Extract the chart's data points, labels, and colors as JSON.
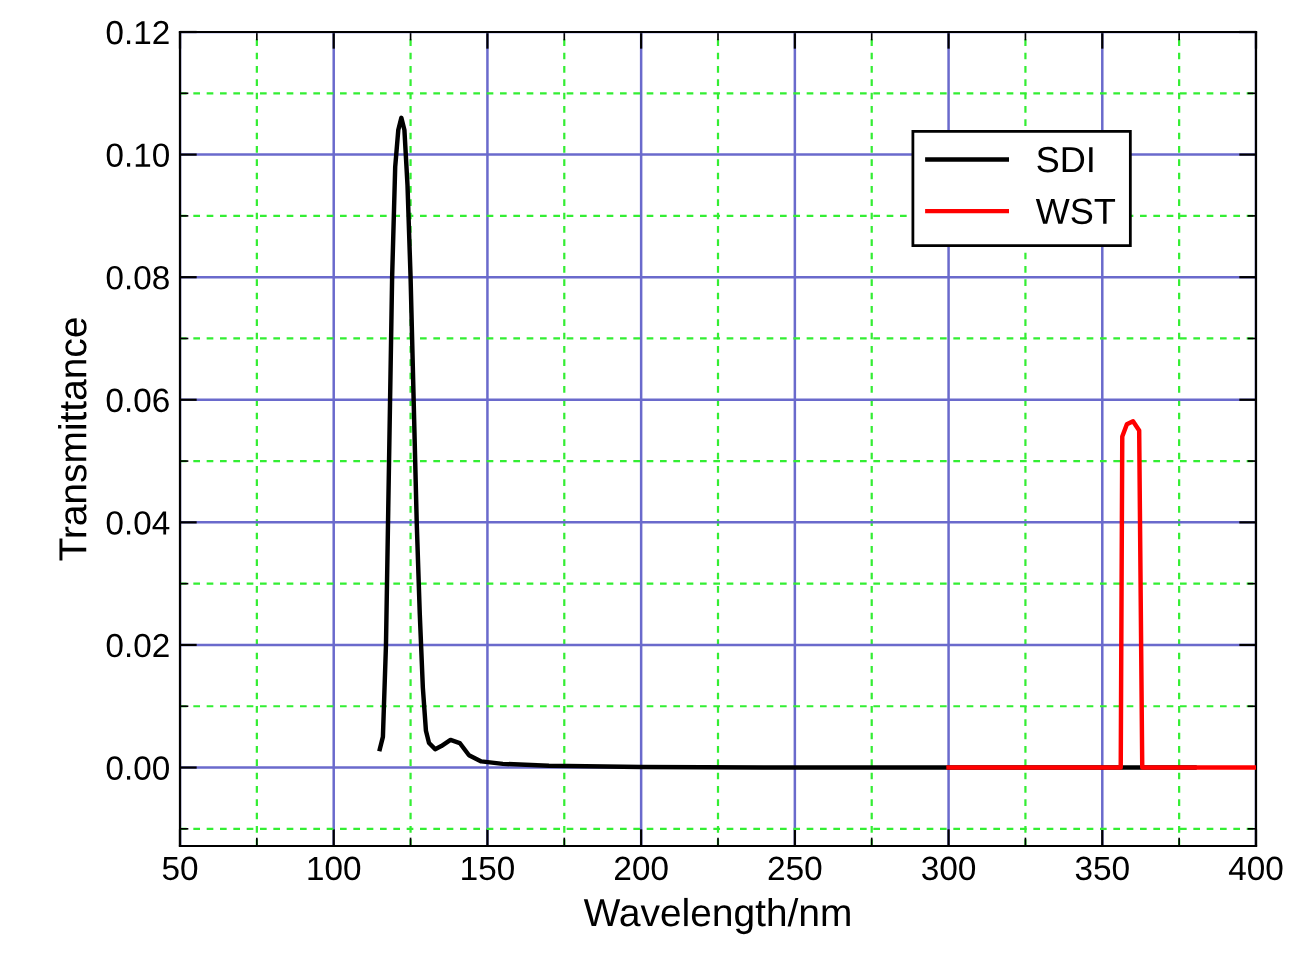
{
  "chart_data": {
    "type": "line",
    "xlabel": "Wavelength/nm",
    "ylabel": "Transmittance",
    "xlim": [
      50,
      400
    ],
    "xticks": [
      50,
      {
        "value": 75,
        "label": null
      },
      100,
      {
        "value": 125,
        "label": null
      },
      150,
      {
        "value": 175,
        "label": null
      },
      200,
      {
        "value": 225,
        "label": null
      },
      250,
      {
        "value": 275,
        "label": null
      },
      300,
      {
        "value": 325,
        "label": null
      },
      350,
      {
        "value": 375,
        "label": null
      },
      400
    ],
    "ylim": [
      -0.0128,
      0.12
    ],
    "yticks": [
      {
        "value": -0.01,
        "label": null
      },
      {
        "value": 0,
        "label": "0.00"
      },
      {
        "value": 0.01,
        "label": null
      },
      {
        "value": 0.03,
        "label": null
      },
      {
        "value": 0.05,
        "label": null
      },
      {
        "value": 0.07,
        "label": null
      },
      {
        "value": 0.09,
        "label": null
      },
      {
        "value": 0.11,
        "label": null
      },
      {
        "value": 0.02,
        "label": "0.02"
      },
      {
        "value": 0.04,
        "label": "0.04"
      },
      {
        "value": 0.06,
        "label": "0.06"
      },
      {
        "value": 0.08,
        "label": "0.08"
      },
      {
        "value": 0.1,
        "label": "0.10"
      },
      {
        "value": 0.12,
        "label": "0.12"
      }
    ],
    "grid": true,
    "legend": "top right",
    "line_style": "solid",
    "series": [
      {
        "name": "SDI",
        "color": "#000000",
        "x": [
          115,
          116,
          117,
          118,
          119,
          120,
          121,
          122,
          123,
          124,
          125,
          126,
          127,
          128,
          129,
          130,
          131,
          133,
          135,
          138,
          141,
          144,
          148,
          155,
          170,
          200,
          250,
          300,
          380
        ],
        "values": [
          0.003,
          0.005,
          0.02,
          0.05,
          0.08,
          0.098,
          0.104,
          0.106,
          0.104,
          0.095,
          0.08,
          0.06,
          0.04,
          0.025,
          0.013,
          0.006,
          0.004,
          0.003,
          0.0035,
          0.0045,
          0.004,
          0.002,
          0.001,
          0.0006,
          0.0003,
          0.0001,
          0,
          0,
          0
        ]
      },
      {
        "name": "WST",
        "color": "#ff0000",
        "x": [
          300,
          356,
          356.5,
          358,
          360,
          362,
          363,
          400
        ],
        "values": [
          0,
          0,
          0.054,
          0.056,
          0.0565,
          0.055,
          0,
          0
        ]
      }
    ]
  }
}
